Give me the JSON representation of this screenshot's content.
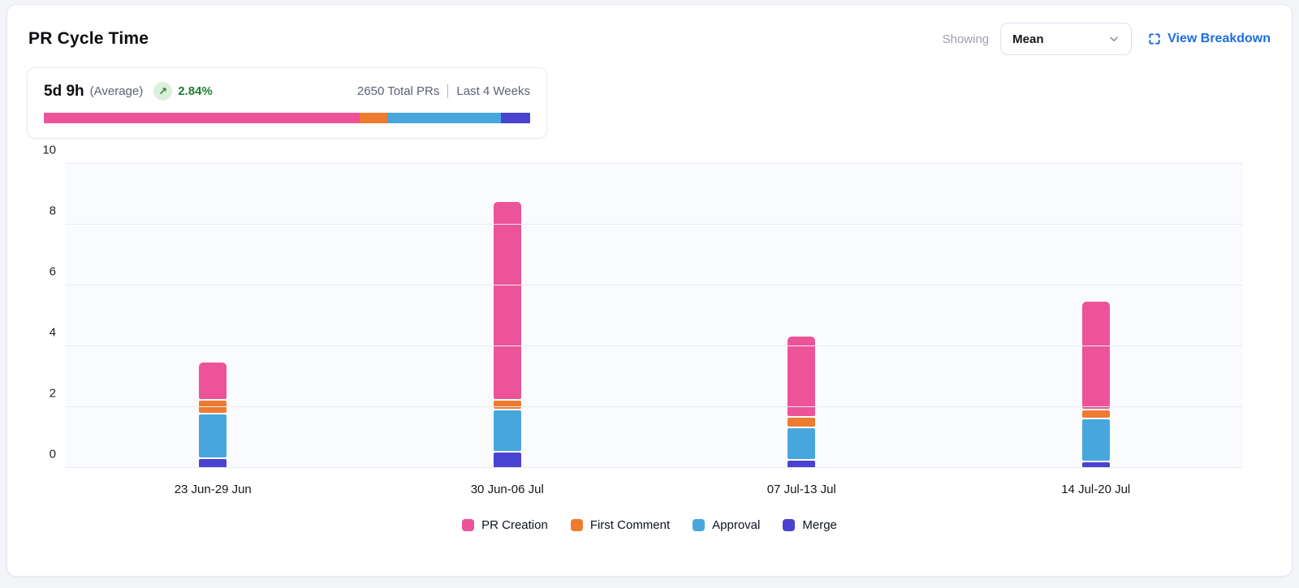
{
  "header": {
    "title": "PR Cycle Time",
    "showing_label": "Showing",
    "aggregation_select": {
      "value": "Mean"
    },
    "view_breakdown_label": "View Breakdown"
  },
  "summary": {
    "value": "5d 9h",
    "value_suffix": "(Average)",
    "trend": "up",
    "trend_arrow": "↗",
    "change_percent": "2.84%",
    "total_prs": "2650 Total PRs",
    "period": "Last 4 Weeks",
    "distribution_percent": [
      65.0,
      5.6,
      23.4,
      6.0
    ]
  },
  "colors": {
    "pr_creation": "#EC5399",
    "first_comment": "#EE7B30",
    "approval": "#47A7DC",
    "merge": "#4A43D1",
    "accent_blue": "#1D6FE0",
    "positive_green": "#1E7E34",
    "positive_green_bg": "#DCEFDC"
  },
  "chart_data": {
    "type": "bar",
    "stacked": true,
    "categories": [
      "23 Jun-29 Jun",
      "30 Jun-06 Jul",
      "07 Jul-13 Jul",
      "14 Jul-20 Jul"
    ],
    "series": [
      {
        "name": "PR Creation",
        "color_key": "pr_creation",
        "values": [
          1.2,
          6.5,
          2.6,
          3.5
        ]
      },
      {
        "name": "First Comment",
        "color_key": "first_comment",
        "values": [
          0.4,
          0.25,
          0.3,
          0.25
        ]
      },
      {
        "name": "Approval",
        "color_key": "approval",
        "values": [
          1.4,
          1.35,
          1.0,
          1.35
        ]
      },
      {
        "name": "Merge",
        "color_key": "merge",
        "values": [
          0.3,
          0.5,
          0.25,
          0.2
        ]
      }
    ],
    "stack_totals": [
      3.3,
      8.6,
      4.15,
      5.3
    ],
    "title": "PR Cycle Time",
    "xlabel": "",
    "ylabel": "",
    "ylim": [
      0,
      10
    ],
    "yticks": [
      0,
      2,
      4,
      6,
      8,
      10
    ],
    "grid": true,
    "legend_position": "bottom"
  }
}
